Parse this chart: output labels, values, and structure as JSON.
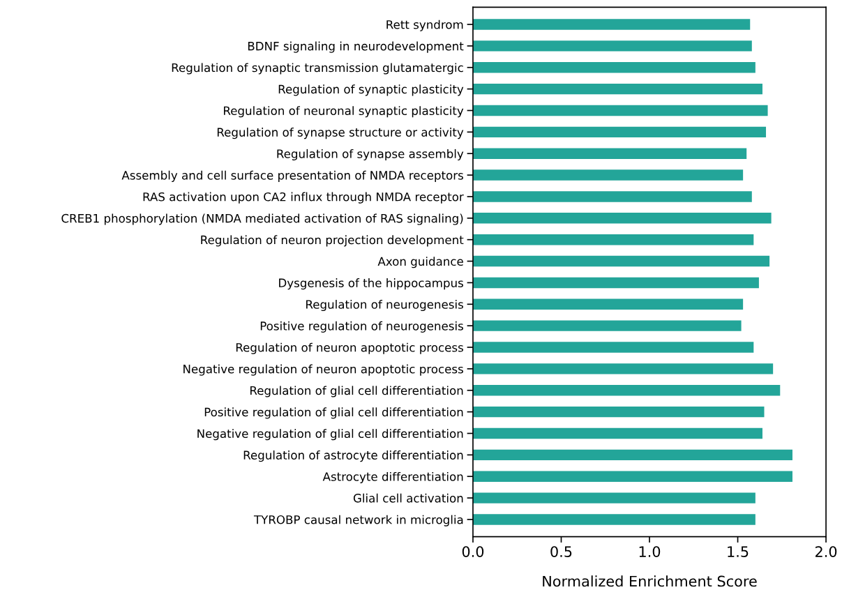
{
  "chart_data": {
    "type": "bar",
    "orientation": "horizontal",
    "xlabel": "Normalized Enrichment Score",
    "categories": [
      "Rett syndrom",
      "BDNF signaling in neurodevelopment",
      "Regulation of synaptic transmission glutamatergic",
      "Regulation of synaptic plasticity",
      "Regulation of neuronal synaptic plasticity",
      "Regulation of synapse structure or activity",
      "Regulation of synapse assembly",
      "Assembly and cell surface presentation of NMDA receptors",
      "RAS activation upon CA2 influx through NMDA receptor",
      "CREB1 phosphorylation (NMDA mediated activation of RAS signaling)",
      "Regulation of neuron projection development",
      "Axon guidance",
      "Dysgenesis of the hippocampus",
      "Regulation of neurogenesis",
      "Positive regulation of neurogenesis",
      "Regulation of neuron apoptotic process",
      "Negative regulation of neuron apoptotic process",
      "Regulation of glial cell differentiation",
      "Positive regulation of glial cell differentiation",
      "Negative regulation of glial cell differentiation",
      "Regulation of astrocyte differentiation",
      "Astrocyte differentiation",
      "Glial cell activation",
      "TYROBP causal network in microglia"
    ],
    "values": [
      1.57,
      1.58,
      1.6,
      1.64,
      1.67,
      1.66,
      1.55,
      1.53,
      1.58,
      1.69,
      1.59,
      1.68,
      1.62,
      1.53,
      1.52,
      1.59,
      1.7,
      1.74,
      1.65,
      1.64,
      1.81,
      1.81,
      1.6,
      1.6
    ],
    "color": "#23a599",
    "xlim": [
      0.0,
      2.0
    ],
    "xticks": [
      {
        "value": 0.0,
        "label": "0.0"
      },
      {
        "value": 0.5,
        "label": "0.5"
      },
      {
        "value": 1.0,
        "label": "1.0"
      },
      {
        "value": 1.5,
        "label": "1.5"
      },
      {
        "value": 2.0,
        "label": "2.0"
      }
    ],
    "grid": false,
    "legend": false
  }
}
